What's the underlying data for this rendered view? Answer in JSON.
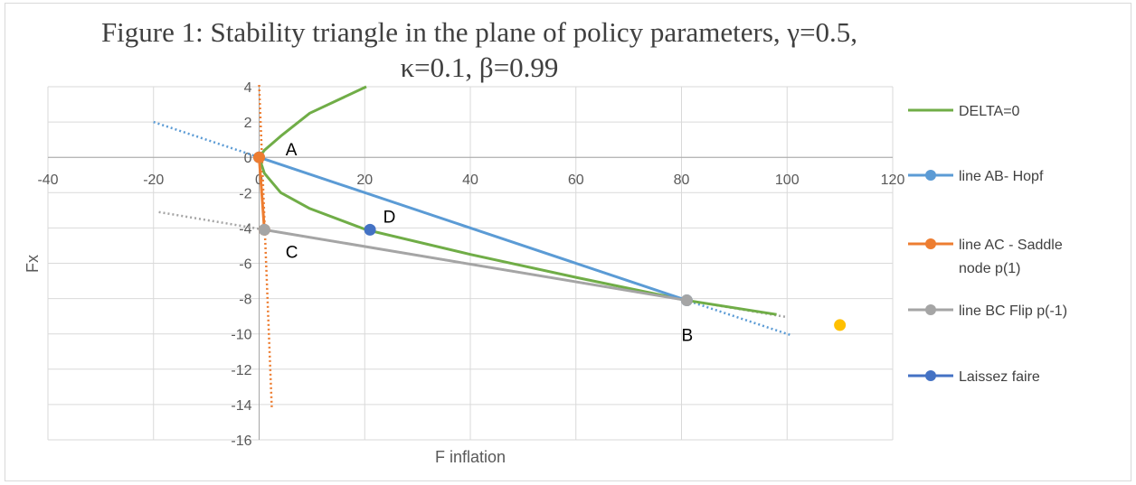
{
  "chart_data": {
    "type": "scatter",
    "title_line1": "Figure 1: Stability triangle in the plane of policy parameters, γ=0.5,",
    "title_line2": "κ=0.1, β=0.99",
    "xlabel": "F inflation",
    "ylabel": "Fx",
    "xlim": [
      -40,
      120
    ],
    "ylim": [
      -16,
      4
    ],
    "x_ticks": [
      -40,
      -20,
      0,
      20,
      40,
      60,
      80,
      100,
      120
    ],
    "y_ticks": [
      4,
      2,
      0,
      -2,
      -4,
      -6,
      -8,
      -10,
      -12,
      -14,
      -16
    ],
    "grid": true,
    "legend_position": "right",
    "series": [
      {
        "name": "DELTA=0",
        "color": "#70ad47",
        "style": "curve",
        "x": [
          20.3,
          9.6,
          4.1,
          1.0,
          0.0,
          1.0,
          4.1,
          9.6,
          20.3,
          40,
          60,
          81,
          98
        ],
        "y": [
          4,
          2.5,
          1.2,
          0.4,
          0,
          -0.9,
          -2.0,
          -2.9,
          -4.1,
          -5.5,
          -6.8,
          -8.1,
          -8.9
        ]
      },
      {
        "name": "line AB- Hopf",
        "color": "#5b9bd5",
        "style": "line-markers",
        "x": [
          0,
          81
        ],
        "y": [
          0,
          -8.1
        ],
        "trend_x": [
          -20,
          101
        ],
        "trend_y": [
          2.0,
          -10.1
        ]
      },
      {
        "name": "line AC - Saddle node p(1)",
        "legend_lines": [
          "line AC - Saddle",
          "node p(1)"
        ],
        "color": "#ed7d31",
        "style": "line-markers",
        "x": [
          0,
          1
        ],
        "y": [
          0,
          -4.1
        ],
        "trend_x": [
          0.0,
          2.4
        ],
        "trend_y": [
          4.1,
          -14.2
        ]
      },
      {
        "name": "line BC Flip p(-1)",
        "color": "#a5a5a5",
        "style": "line-markers",
        "x": [
          1,
          81
        ],
        "y": [
          -4.1,
          -8.1
        ],
        "trend_x": [
          -19,
          100
        ],
        "trend_y": [
          -3.1,
          -9.05
        ]
      },
      {
        "name": "Laissez faire",
        "color": "#4472c4",
        "style": "markers",
        "x": [
          21
        ],
        "y": [
          -4.1
        ]
      },
      {
        "name": "",
        "color": "#ffc000",
        "style": "markers",
        "legend": false,
        "x": [
          110
        ],
        "y": [
          -9.5
        ]
      }
    ],
    "point_labels": [
      {
        "text": "A",
        "x": 5,
        "y": 0.1
      },
      {
        "text": "C",
        "x": 5,
        "y": -5.7
      },
      {
        "text": "D",
        "x": 23.5,
        "y": -3.7
      },
      {
        "text": "B",
        "x": 80,
        "y": -10.4
      }
    ]
  }
}
